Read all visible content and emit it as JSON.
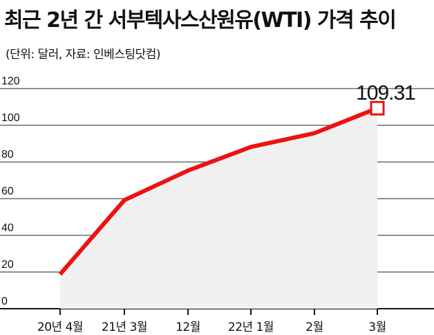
{
  "title": "최근 2년 간 서부텍사스산원유(WTI) 가격 추이",
  "subtitle": "(단위: 달러, 자료: 인베스팅닷컴)",
  "chart_data": {
    "type": "area",
    "title": "최근 2년 간 서부텍사스산원유(WTI) 가격 추이",
    "subtitle": "(단위: 달러, 자료: 인베스팅닷컴)",
    "categories": [
      "20년 4월",
      "21년 3월",
      "12월",
      "22년 1월",
      "2월",
      "3월"
    ],
    "values": [
      18.8,
      59.2,
      75.3,
      88.2,
      95.7,
      109.31
    ],
    "yticks": [
      0,
      20,
      40,
      60,
      80,
      100,
      120
    ],
    "ylim": [
      0,
      120
    ],
    "grid": true,
    "highlight": {
      "index": 5,
      "label": "109.31"
    },
    "colors": {
      "line": "#ee1111",
      "fill": "#f0f0f0",
      "grid": "#222222"
    }
  }
}
